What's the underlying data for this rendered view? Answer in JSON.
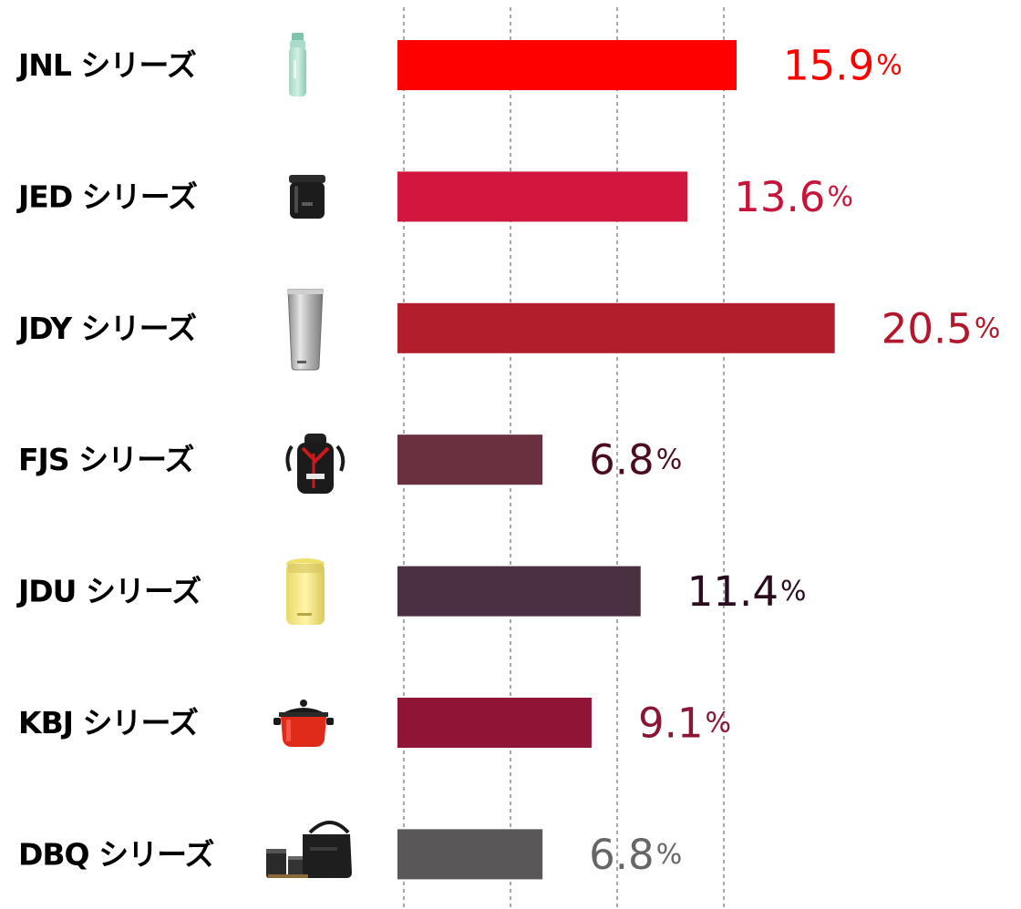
{
  "chart_data": {
    "type": "bar",
    "orientation": "horizontal",
    "categories": [
      "JNL シリーズ",
      "JED シリーズ",
      "JDY シリーズ",
      "FJS シリーズ",
      "JDU シリーズ",
      "KBJ シリーズ",
      "DBQ シリーズ"
    ],
    "values": [
      15.9,
      13.6,
      20.5,
      6.8,
      11.4,
      9.1,
      6.8
    ],
    "value_labels": [
      "15.9",
      "13.6",
      "20.5",
      "6.8",
      "11.4",
      "9.1",
      "6.8"
    ],
    "unit": "%",
    "bar_colors": [
      "#ff0000",
      "#d2163d",
      "#b21e2b",
      "#6a3040",
      "#4b3042",
      "#8e1535",
      "#5a5758"
    ],
    "label_colors": [
      "#ff0000",
      "#c8143a",
      "#b2182b",
      "#4a0c22",
      "#2a0c1e",
      "#8a1535",
      "#666666"
    ],
    "product_icons": [
      "mint-bottle-icon",
      "black-food-jar-icon",
      "steel-tumbler-icon",
      "sports-bottle-icon",
      "yellow-food-jar-icon",
      "red-cooking-pot-icon",
      "lunch-jar-bag-icon"
    ],
    "xlim": [
      0,
      25
    ],
    "grid": true,
    "gridlines_at": [
      0,
      5,
      10,
      15
    ],
    "title": "",
    "xlabel": "",
    "ylabel": ""
  }
}
